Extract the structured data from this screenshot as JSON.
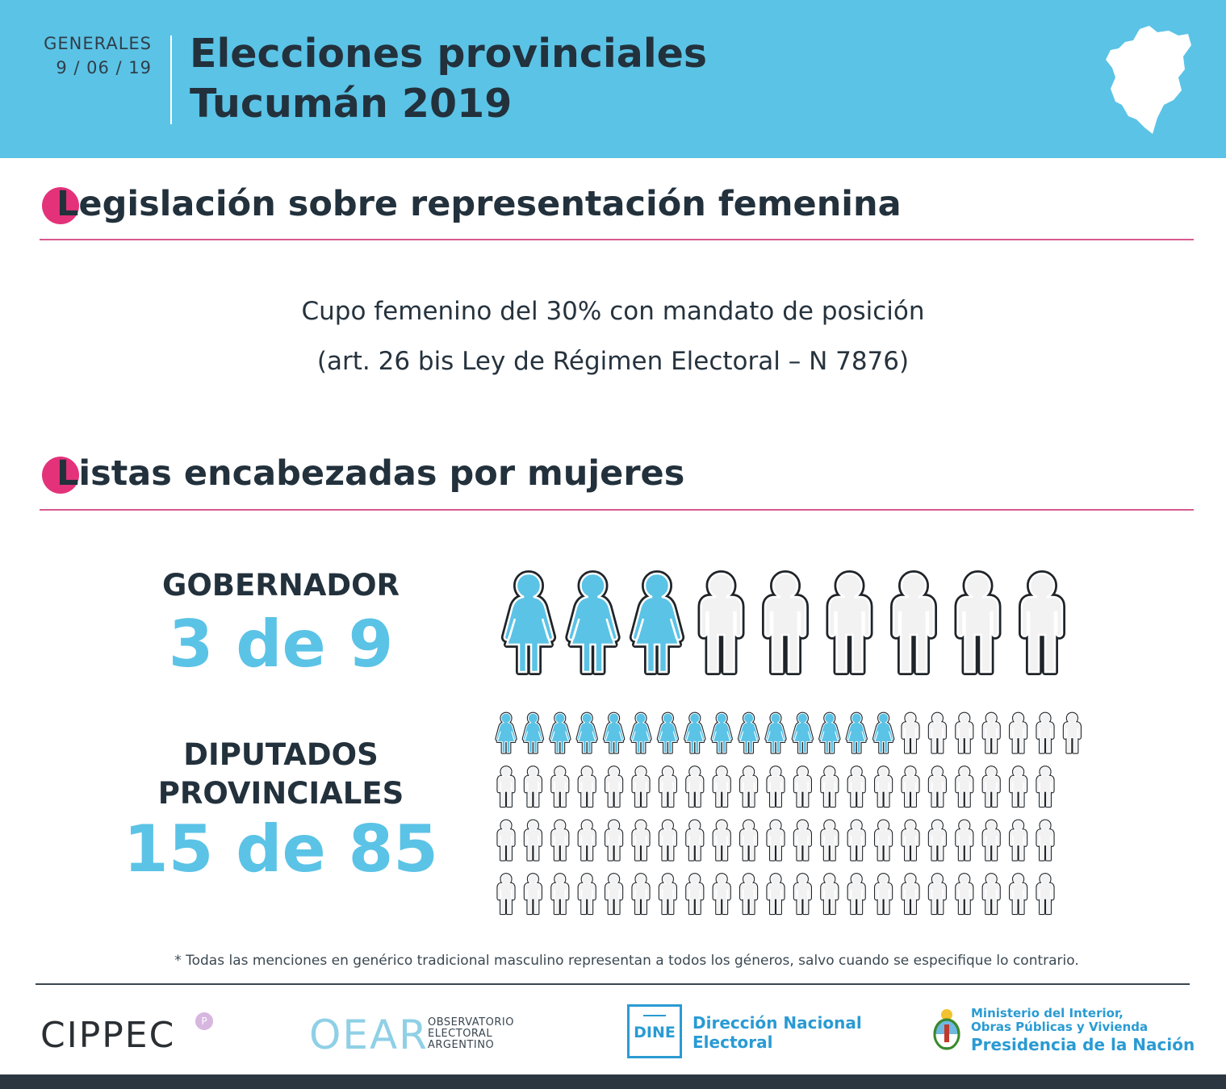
{
  "header": {
    "date_label": "GENERALES",
    "date_value": "9 / 06 / 19",
    "title_line1": "Elecciones provinciales",
    "title_line2": "Tucumán 2019"
  },
  "sections": {
    "legislation_title": "Legislación sobre representación femenina",
    "legislation_line1": "Cupo femenino del 30% con mandato de posición",
    "legislation_line2": "(art. 26 bis Ley de Régimen Electoral – N 7876)",
    "lists_title": "Listas encabezadas por mujeres"
  },
  "stats": {
    "governor": {
      "label": "GOBERNADOR",
      "value": "3 de 9",
      "women": 3,
      "total": 9
    },
    "deputies": {
      "label_line1": "DIPUTADOS",
      "label_line2": "PROVINCIALES",
      "value": "15 de 85",
      "women": 15,
      "total": 85
    }
  },
  "footnote": "* Todas las menciones en genérico tradicional masculino representan a todos los géneros, salvo cuando se especifique lo contrario.",
  "logos": {
    "cippec": "CIPPEC",
    "oear": "OEAR",
    "oear_sub1": "OBSERVATORIO",
    "oear_sub2": "ELECTORAL",
    "oear_sub3": "ARGENTINO",
    "dine": "DINE",
    "dine_line1": "Dirección Nacional",
    "dine_line2": "Electoral",
    "min_line1": "Ministerio del Interior,",
    "min_line2": "Obras Públicas y Vivienda",
    "min_line3": "Presidencia de la Nación"
  },
  "colors": {
    "header_bg": "#5bc3e6",
    "accent": "#e4327a",
    "woman_fill": "#5bc3e6",
    "man_fill": "#f2f2f2",
    "text_dark": "#22313c"
  }
}
